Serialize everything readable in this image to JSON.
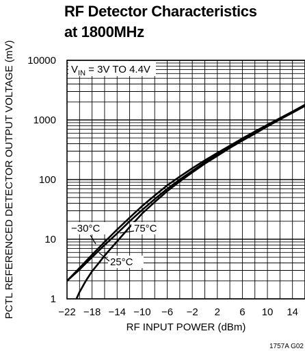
{
  "chart_data": {
    "type": "line",
    "title_line1": "RF Detector Characteristics",
    "title_line2": "at 1800MHz",
    "xlabel": "RF INPUT POWER (dBm)",
    "ylabel": "PCTL REFERENCED DETECTOR OUTPUT VOLTAGE (mV)",
    "xlim": [
      -22,
      16
    ],
    "ylim": [
      1,
      10000
    ],
    "y_scale": "log",
    "grid": true,
    "x_ticks": [
      -22,
      -18,
      -14,
      -10,
      -6,
      -2,
      2,
      6,
      10,
      14
    ],
    "x_tick_labels": [
      "−22",
      "−18",
      "−14",
      "−10",
      "−6",
      "−2",
      "2",
      "6",
      "10",
      "14"
    ],
    "y_ticks": [
      1,
      10,
      100,
      1000,
      10000
    ],
    "y_tick_labels": [
      "1",
      "10",
      "100",
      "1000",
      "10000"
    ],
    "annotation_vin_prefix": "V",
    "annotation_vin_sub": "IN",
    "annotation_vin_suffix": " = 3V TO 4.4V",
    "footer": "1757A G02",
    "series": [
      {
        "name": "−30°C",
        "x": [
          -22,
          -20,
          -18,
          -16,
          -14,
          -12,
          -10,
          -8,
          -6,
          -4,
          -2,
          0,
          2,
          4,
          6,
          8,
          10,
          12,
          14,
          16
        ],
        "y": [
          2.0,
          3.3,
          5.5,
          9.0,
          14.5,
          23,
          36,
          54,
          80,
          112,
          155,
          210,
          280,
          370,
          490,
          640,
          830,
          1070,
          1380,
          1800
        ]
      },
      {
        "name": "75°C",
        "x": [
          -22,
          -20,
          -18,
          -16,
          -14,
          -12,
          -10,
          -8,
          -6,
          -4,
          -2,
          0,
          2,
          4,
          6,
          8,
          10,
          12,
          14,
          16
        ],
        "y": [
          2.0,
          3.1,
          5.0,
          8.0,
          12.5,
          20,
          31,
          47,
          70,
          100,
          140,
          195,
          260,
          350,
          460,
          610,
          800,
          1040,
          1350,
          1760
        ]
      },
      {
        "name": "25°C",
        "x": [
          -20.5,
          -20,
          -19,
          -18,
          -17,
          -16,
          -15,
          -14,
          -12,
          -10,
          -8,
          -6,
          -4,
          -2,
          0,
          2,
          4,
          6,
          8,
          10,
          12,
          14,
          16
        ],
        "y": [
          1.0,
          1.3,
          2.0,
          2.9,
          3.9,
          5.3,
          7.0,
          9.2,
          16,
          27,
          42,
          64,
          93,
          132,
          185,
          250,
          340,
          450,
          590,
          780,
          1020,
          1320,
          1720
        ]
      }
    ]
  }
}
